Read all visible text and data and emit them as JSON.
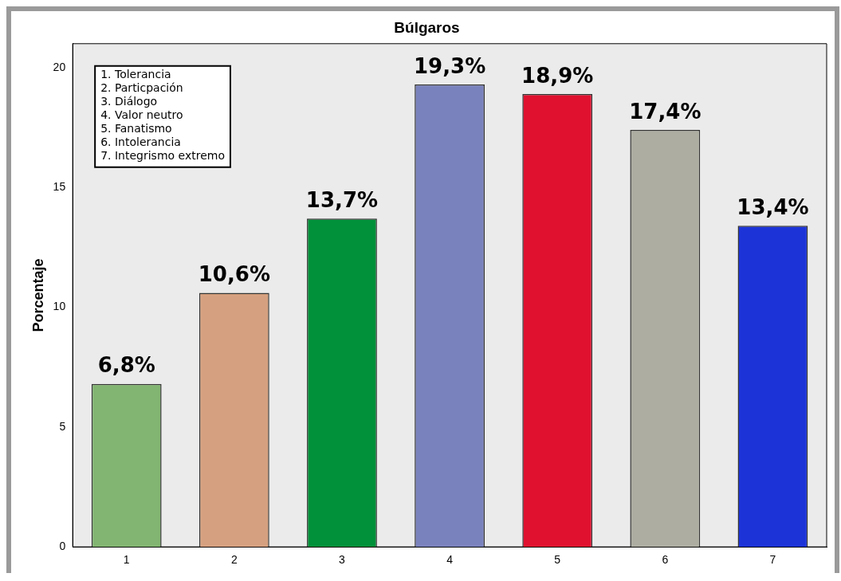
{
  "chart_data": {
    "type": "bar",
    "title": "Búlgaros",
    "ylabel": "Porcentaje",
    "categories": [
      "1",
      "2",
      "3",
      "4",
      "5",
      "6",
      "7"
    ],
    "values": [
      6.8,
      10.6,
      13.7,
      19.3,
      18.9,
      17.4,
      13.4
    ],
    "colors": [
      "#82b571",
      "#d5a07f",
      "#00913a",
      "#7a82bd",
      "#e0112f",
      "#adada1",
      "#1c33d8"
    ],
    "value_labels": [
      "6,8%",
      "10,6%",
      "13,7%",
      "19,3%",
      "18,9%",
      "17,4%",
      "13,4%"
    ],
    "ylim": [
      0,
      21
    ],
    "yticks": [
      0,
      5,
      10,
      15,
      20
    ],
    "grid": false,
    "legend": false,
    "annotations": [
      "1. Tolerancia",
      "2. Particpación",
      "3. Diálogo",
      "4. Valor neutro",
      "5. Fanatismo",
      "6. Intolerancia",
      "7. Integrismo extremo"
    ]
  }
}
